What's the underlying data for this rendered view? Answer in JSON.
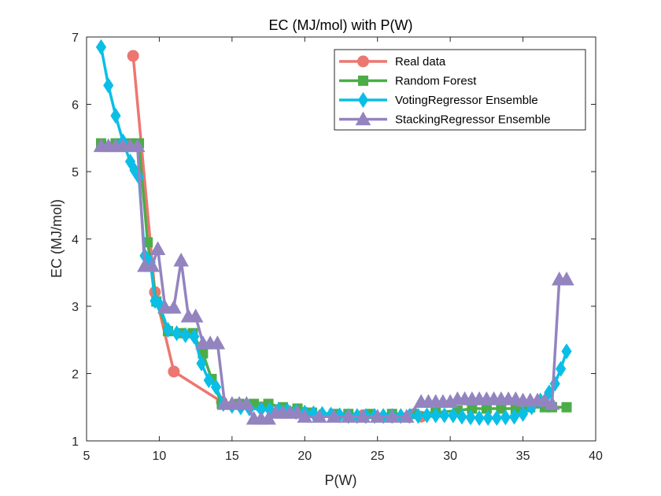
{
  "chart_data": {
    "type": "line",
    "title": "EC (MJ/mol) with P(W)",
    "xlabel": "P(W)",
    "ylabel": "EC (MJ/mol)",
    "xlim": [
      5,
      40
    ],
    "ylim": [
      1,
      7
    ],
    "x_ticks": [
      5,
      10,
      15,
      20,
      25,
      30,
      35,
      40
    ],
    "y_ticks": [
      1,
      2,
      3,
      4,
      5,
      6,
      7
    ],
    "grid": false,
    "legend_position": "top-right",
    "series": [
      {
        "name": "Real data",
        "color": "#ec7771",
        "marker": "circle",
        "points": [
          [
            8.2,
            6.72
          ],
          [
            9.7,
            3.21
          ],
          [
            11.0,
            2.03
          ],
          [
            14.3,
            1.58
          ],
          [
            17.0,
            1.5
          ],
          [
            20.0,
            1.42
          ],
          [
            24.0,
            1.38
          ],
          [
            28.0,
            1.36
          ]
        ]
      },
      {
        "name": "Random Forest",
        "color": "#4cad48",
        "marker": "square",
        "points": [
          [
            6.0,
            5.42
          ],
          [
            7.0,
            5.42
          ],
          [
            8.0,
            5.42
          ],
          [
            8.6,
            5.42
          ],
          [
            9.2,
            3.95
          ],
          [
            9.8,
            3.07
          ],
          [
            10.6,
            2.63
          ],
          [
            11.5,
            2.6
          ],
          [
            12.3,
            2.6
          ],
          [
            13.0,
            2.3
          ],
          [
            13.6,
            1.92
          ],
          [
            14.3,
            1.55
          ],
          [
            15.5,
            1.55
          ],
          [
            16.5,
            1.55
          ],
          [
            17.5,
            1.55
          ],
          [
            18.5,
            1.5
          ],
          [
            19.5,
            1.48
          ],
          [
            20.5,
            1.42
          ],
          [
            22.0,
            1.4
          ],
          [
            23.0,
            1.4
          ],
          [
            24.5,
            1.4
          ],
          [
            26.0,
            1.4
          ],
          [
            27.5,
            1.4
          ],
          [
            29.0,
            1.42
          ],
          [
            30.5,
            1.45
          ],
          [
            31.5,
            1.48
          ],
          [
            32.5,
            1.48
          ],
          [
            33.5,
            1.48
          ],
          [
            34.5,
            1.48
          ],
          [
            35.5,
            1.5
          ],
          [
            36.5,
            1.5
          ],
          [
            37.0,
            1.5
          ],
          [
            38.0,
            1.5
          ]
        ]
      },
      {
        "name": "VotingRegressor Ensemble",
        "color": "#0bbee6",
        "marker": "diamond",
        "points": [
          [
            6.0,
            6.85
          ],
          [
            6.5,
            6.28
          ],
          [
            7.0,
            5.83
          ],
          [
            7.5,
            5.45
          ],
          [
            8.0,
            5.15
          ],
          [
            8.3,
            5.02
          ],
          [
            8.6,
            4.92
          ],
          [
            9.0,
            3.75
          ],
          [
            9.4,
            3.65
          ],
          [
            9.7,
            3.08
          ],
          [
            10.0,
            3.03
          ],
          [
            10.6,
            2.65
          ],
          [
            11.2,
            2.6
          ],
          [
            11.8,
            2.57
          ],
          [
            12.4,
            2.55
          ],
          [
            12.9,
            2.15
          ],
          [
            13.4,
            1.9
          ],
          [
            13.9,
            1.8
          ],
          [
            14.4,
            1.55
          ],
          [
            15.0,
            1.52
          ],
          [
            15.6,
            1.5
          ],
          [
            16.2,
            1.48
          ],
          [
            17.0,
            1.47
          ],
          [
            17.6,
            1.46
          ],
          [
            18.2,
            1.46
          ],
          [
            18.8,
            1.45
          ],
          [
            19.4,
            1.43
          ],
          [
            20.0,
            1.42
          ],
          [
            20.6,
            1.41
          ],
          [
            21.2,
            1.4
          ],
          [
            21.8,
            1.39
          ],
          [
            22.4,
            1.38
          ],
          [
            23.0,
            1.37
          ],
          [
            23.6,
            1.37
          ],
          [
            24.2,
            1.37
          ],
          [
            24.8,
            1.37
          ],
          [
            25.4,
            1.37
          ],
          [
            26.0,
            1.37
          ],
          [
            26.6,
            1.37
          ],
          [
            27.2,
            1.37
          ],
          [
            27.8,
            1.37
          ],
          [
            28.4,
            1.38
          ],
          [
            29.0,
            1.38
          ],
          [
            29.6,
            1.38
          ],
          [
            30.2,
            1.38
          ],
          [
            30.8,
            1.36
          ],
          [
            31.4,
            1.35
          ],
          [
            32.0,
            1.34
          ],
          [
            32.6,
            1.34
          ],
          [
            33.2,
            1.34
          ],
          [
            33.8,
            1.35
          ],
          [
            34.4,
            1.36
          ],
          [
            35.0,
            1.4
          ],
          [
            35.6,
            1.5
          ],
          [
            36.2,
            1.6
          ],
          [
            36.8,
            1.72
          ],
          [
            37.2,
            1.85
          ],
          [
            37.6,
            2.07
          ],
          [
            38.0,
            2.33
          ]
        ]
      },
      {
        "name": "StackingRegressor Ensemble",
        "color": "#9384c0",
        "marker": "triangle",
        "points": [
          [
            6.0,
            5.38
          ],
          [
            6.5,
            5.38
          ],
          [
            7.0,
            5.38
          ],
          [
            7.5,
            5.38
          ],
          [
            8.0,
            5.38
          ],
          [
            8.5,
            5.38
          ],
          [
            9.0,
            3.6
          ],
          [
            9.5,
            3.6
          ],
          [
            9.9,
            3.85
          ],
          [
            10.4,
            2.98
          ],
          [
            11.0,
            2.98
          ],
          [
            11.5,
            3.68
          ],
          [
            12.0,
            2.85
          ],
          [
            12.5,
            2.85
          ],
          [
            13.0,
            2.45
          ],
          [
            13.5,
            2.45
          ],
          [
            14.0,
            2.45
          ],
          [
            14.5,
            1.55
          ],
          [
            15.0,
            1.55
          ],
          [
            15.5,
            1.55
          ],
          [
            16.0,
            1.55
          ],
          [
            16.5,
            1.33
          ],
          [
            17.0,
            1.33
          ],
          [
            17.5,
            1.33
          ],
          [
            18.0,
            1.42
          ],
          [
            18.5,
            1.42
          ],
          [
            19.0,
            1.42
          ],
          [
            19.5,
            1.42
          ],
          [
            20.0,
            1.36
          ],
          [
            21.0,
            1.36
          ],
          [
            22.0,
            1.36
          ],
          [
            23.0,
            1.36
          ],
          [
            24.0,
            1.36
          ],
          [
            25.0,
            1.36
          ],
          [
            26.0,
            1.36
          ],
          [
            27.0,
            1.36
          ],
          [
            28.0,
            1.58
          ],
          [
            28.5,
            1.58
          ],
          [
            29.0,
            1.58
          ],
          [
            29.5,
            1.58
          ],
          [
            30.0,
            1.58
          ],
          [
            30.5,
            1.62
          ],
          [
            31.0,
            1.62
          ],
          [
            31.5,
            1.62
          ],
          [
            32.0,
            1.62
          ],
          [
            32.5,
            1.62
          ],
          [
            33.0,
            1.62
          ],
          [
            33.5,
            1.62
          ],
          [
            34.0,
            1.62
          ],
          [
            34.5,
            1.62
          ],
          [
            35.0,
            1.6
          ],
          [
            35.5,
            1.6
          ],
          [
            36.0,
            1.6
          ],
          [
            36.5,
            1.6
          ],
          [
            37.0,
            1.55
          ],
          [
            37.5,
            3.4
          ],
          [
            38.0,
            3.4
          ]
        ]
      }
    ]
  }
}
